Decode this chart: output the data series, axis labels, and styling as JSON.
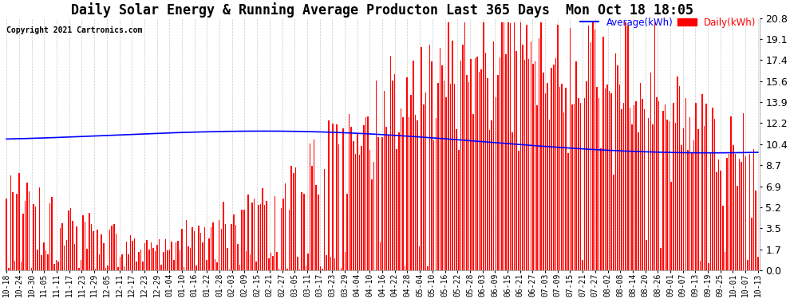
{
  "title": "Daily Solar Energy & Running Average Producton Last 365 Days  Mon Oct 18 18:05",
  "copyright": "Copyright 2021 Cartronics.com",
  "yticks": [
    0.0,
    1.7,
    3.5,
    5.2,
    6.9,
    8.7,
    10.4,
    12.2,
    13.9,
    15.6,
    17.4,
    19.1,
    20.8
  ],
  "ymax": 20.8,
  "ymin": 0.0,
  "bar_color": "#ff0000",
  "avg_color": "#0000ff",
  "background_color": "#ffffff",
  "grid_color": "#bbbbbb",
  "title_fontsize": 12,
  "legend_avg_label": "Average(kWh)",
  "legend_daily_label": "Daily(kWh)",
  "n_days": 365,
  "xtick_labels": [
    "10-18",
    "10-24",
    "10-30",
    "11-05",
    "11-11",
    "11-17",
    "11-23",
    "11-29",
    "12-05",
    "12-11",
    "12-17",
    "12-23",
    "12-29",
    "01-04",
    "01-10",
    "01-16",
    "01-22",
    "01-28",
    "02-03",
    "02-09",
    "02-15",
    "02-21",
    "02-27",
    "03-05",
    "03-11",
    "03-17",
    "03-23",
    "03-29",
    "04-04",
    "04-10",
    "04-16",
    "04-22",
    "04-28",
    "05-04",
    "05-10",
    "05-16",
    "05-22",
    "05-28",
    "06-03",
    "06-09",
    "06-15",
    "06-21",
    "06-27",
    "07-03",
    "07-09",
    "07-15",
    "07-21",
    "07-27",
    "08-02",
    "08-08",
    "08-14",
    "08-20",
    "08-26",
    "09-01",
    "09-07",
    "09-13",
    "09-19",
    "09-25",
    "10-01",
    "10-07",
    "10-13"
  ]
}
